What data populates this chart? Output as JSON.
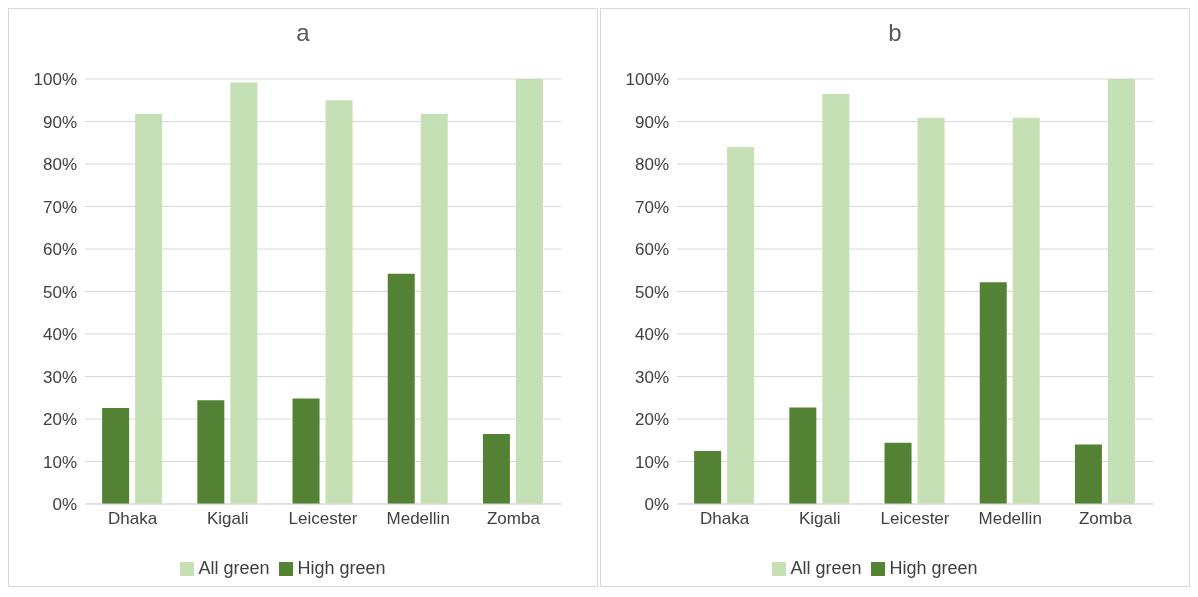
{
  "chart_data": [
    {
      "type": "bar",
      "title": "a",
      "categories": [
        "Dhaka",
        "Kigali",
        "Leicester",
        "Medellin",
        "Zomba"
      ],
      "series": [
        {
          "name": "High green",
          "color": "#548235",
          "values": [
            22.6,
            24.4,
            24.8,
            54.2,
            16.5
          ]
        },
        {
          "name": "All green",
          "color": "#c5e0b4",
          "values": [
            91.8,
            99.2,
            95.0,
            91.8,
            100
          ]
        }
      ],
      "ylim": [
        0,
        100
      ],
      "yticks": [
        {
          "value": 0,
          "label": "0%"
        },
        {
          "value": 10,
          "label": "10%"
        },
        {
          "value": 20,
          "label": "20%"
        },
        {
          "value": 30,
          "label": "30%"
        },
        {
          "value": 40,
          "label": "40%"
        },
        {
          "value": 50,
          "label": "50%"
        },
        {
          "value": 60,
          "label": "60%"
        },
        {
          "value": 70,
          "label": "70%"
        },
        {
          "value": 80,
          "label": "80%"
        },
        {
          "value": 90,
          "label": "90%"
        },
        {
          "value": 100,
          "label": "100%"
        }
      ],
      "grid": "y",
      "legend": "bottom"
    },
    {
      "type": "bar",
      "title": "b",
      "categories": [
        "Dhaka",
        "Kigali",
        "Leicester",
        "Medellin",
        "Zomba"
      ],
      "series": [
        {
          "name": "High green",
          "color": "#548235",
          "values": [
            12.5,
            22.7,
            14.4,
            52.2,
            14.0
          ]
        },
        {
          "name": "All green",
          "color": "#c5e0b4",
          "values": [
            84.0,
            96.5,
            90.9,
            90.9,
            100
          ]
        }
      ],
      "ylim": [
        0,
        100
      ],
      "yticks": [
        {
          "value": 0,
          "label": "0%"
        },
        {
          "value": 10,
          "label": "10%"
        },
        {
          "value": 20,
          "label": "20%"
        },
        {
          "value": 30,
          "label": "30%"
        },
        {
          "value": 40,
          "label": "40%"
        },
        {
          "value": 50,
          "label": "50%"
        },
        {
          "value": 60,
          "label": "60%"
        },
        {
          "value": 70,
          "label": "70%"
        },
        {
          "value": 80,
          "label": "80%"
        },
        {
          "value": 90,
          "label": "90%"
        },
        {
          "value": 100,
          "label": "100%"
        }
      ],
      "grid": "y",
      "legend": "bottom"
    }
  ]
}
